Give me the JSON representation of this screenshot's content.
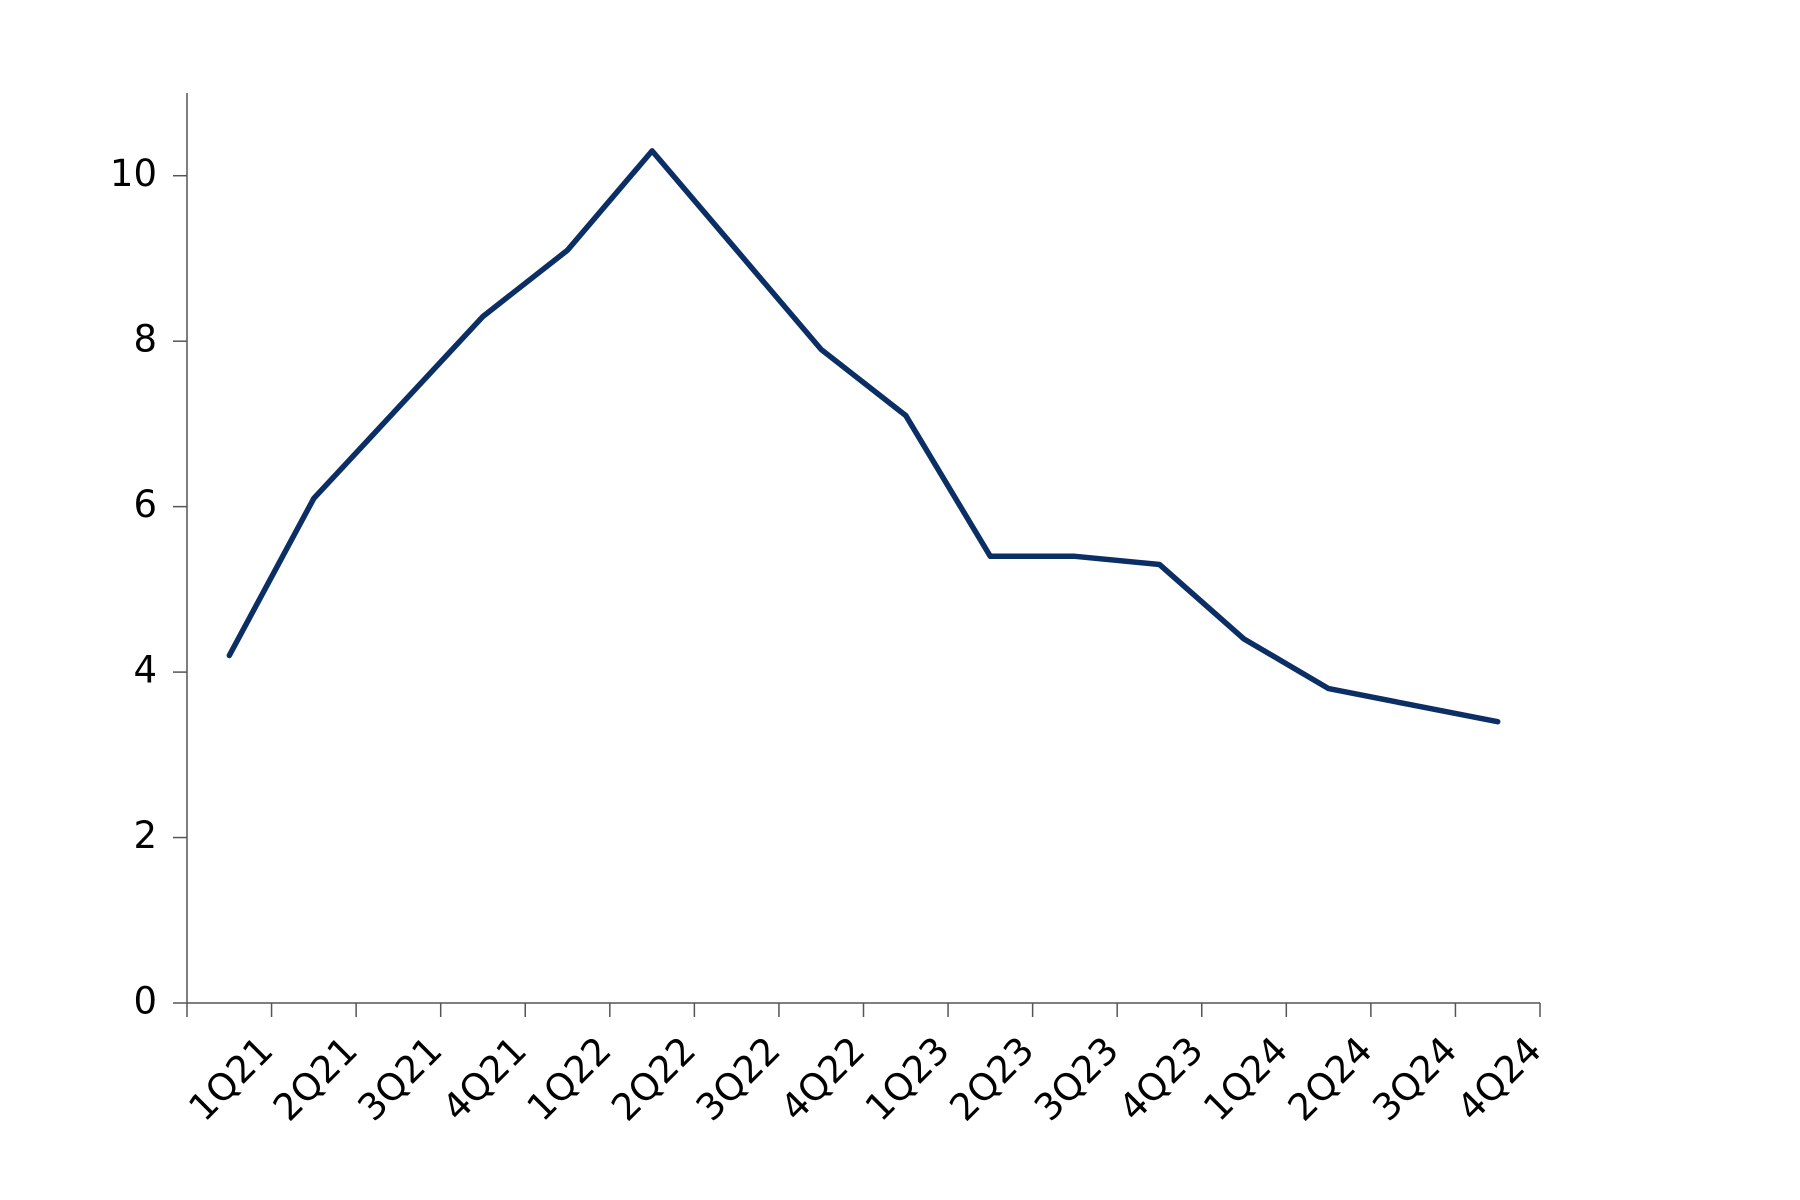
{
  "chart_data": {
    "type": "line",
    "categories": [
      "1Q21",
      "2Q21",
      "3Q21",
      "4Q21",
      "1Q22",
      "2Q22",
      "3Q22",
      "4Q22",
      "1Q23",
      "2Q23",
      "3Q23",
      "4Q23",
      "1Q24",
      "2Q24",
      "3Q24",
      "4Q24"
    ],
    "values": [
      4.2,
      6.1,
      7.2,
      8.3,
      9.1,
      10.3,
      9.1,
      7.9,
      7.1,
      5.4,
      5.4,
      5.3,
      4.4,
      3.8,
      3.6,
      3.4
    ],
    "color": "#0b2f64",
    "ylim": [
      0,
      11
    ],
    "yticks": [
      0,
      2,
      4,
      6,
      8,
      10
    ],
    "grid": false
  }
}
